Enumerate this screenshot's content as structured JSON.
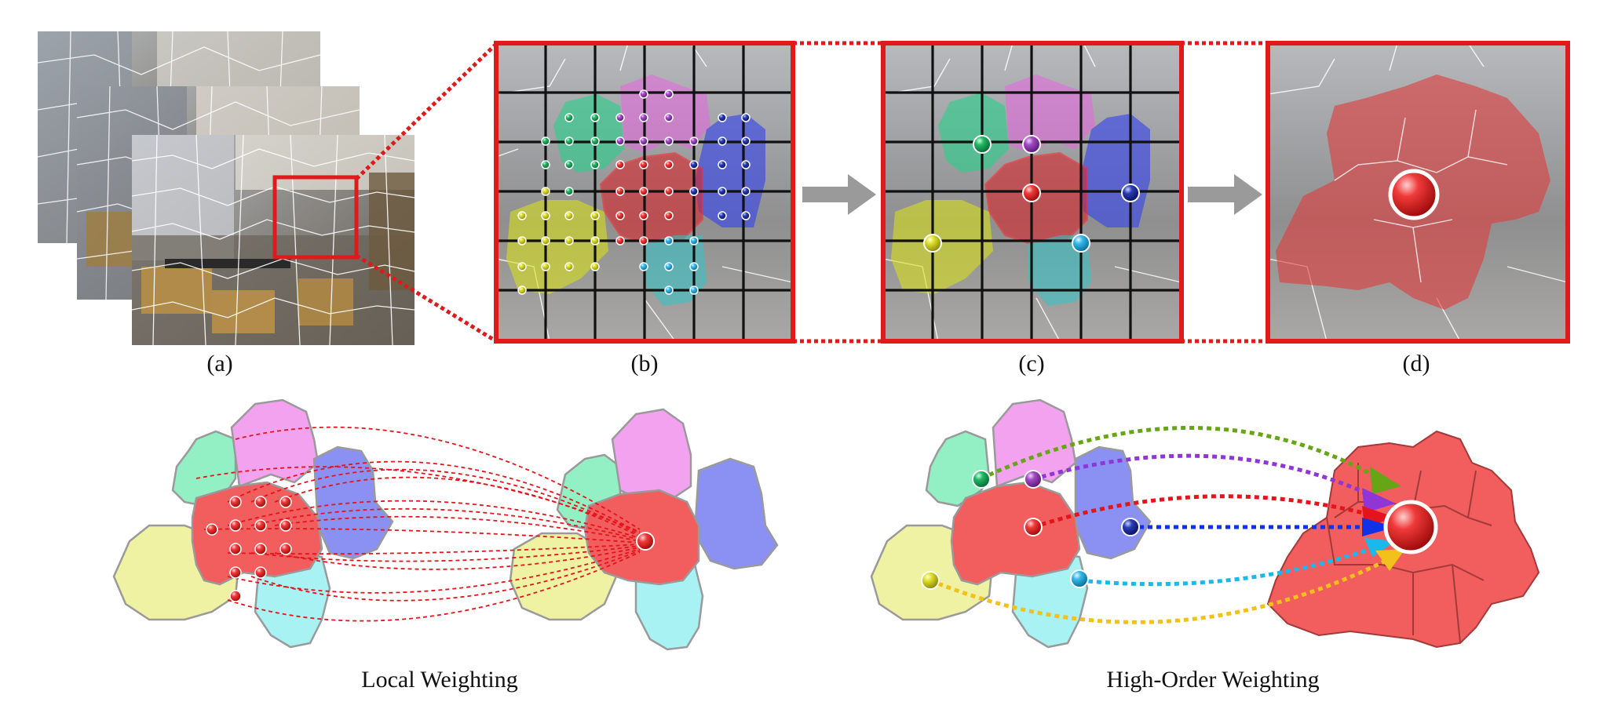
{
  "panels": {
    "a": "(a)",
    "b": "(b)",
    "c": "(c)",
    "d": "(d)"
  },
  "bottom": {
    "left_caption": "Local Weighting",
    "right_caption": "High-Order Weighting"
  },
  "colors": {
    "highlight": "#e0191b",
    "arrow_gray": "#9a9a9a",
    "green": "#19a65a",
    "purple": "#9b3bb8",
    "red": "#e3242b",
    "blue": "#1b2fa8",
    "cyan": "#29b1e6",
    "yellow": "#d6d61f",
    "region_green": "#93efc4",
    "region_pink": "#f2a2ee",
    "region_blue": "#8b91f2",
    "region_red": "#f25d5d",
    "region_yellow": "#eef2a2",
    "region_cyan": "#a8f2f4",
    "arrow_green": "#66a516",
    "arrow_purple": "#9036d6",
    "arrow_red": "#e3141b",
    "arrow_blue": "#1131e6",
    "arrow_cyan": "#1ab8ec",
    "arrow_yellow": "#f2c11b"
  }
}
